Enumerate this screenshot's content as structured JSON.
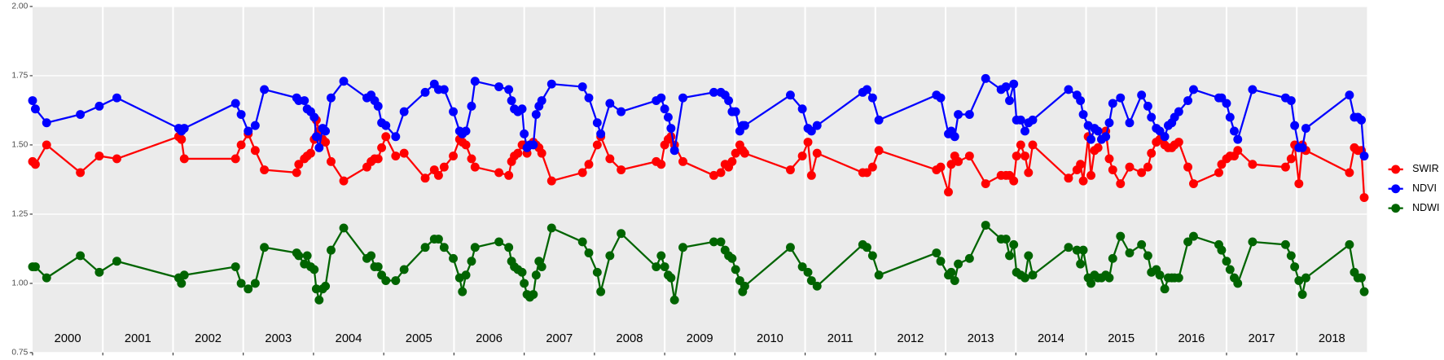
{
  "chart_data": {
    "type": "line",
    "x": [
      2000.0,
      2000.04,
      2000.2,
      2000.68,
      2000.95,
      2001.2,
      2002.08,
      2002.12,
      2002.16,
      2002.89,
      2002.97,
      2003.07,
      2003.17,
      2003.3,
      2003.76,
      2003.79,
      2003.87,
      2003.91,
      2003.96,
      2004.01,
      2004.04,
      2004.08,
      2004.13,
      2004.17,
      2004.25,
      2004.43,
      2004.76,
      2004.82,
      2004.87,
      2004.92,
      2004.97,
      2005.03,
      2005.17,
      2005.29,
      2005.59,
      2005.72,
      2005.78,
      2005.86,
      2005.99,
      2006.08,
      2006.12,
      2006.17,
      2006.25,
      2006.3,
      2006.64,
      2006.78,
      2006.82,
      2006.86,
      2006.91,
      2006.97,
      2007.0,
      2007.04,
      2007.08,
      2007.13,
      2007.17,
      2007.21,
      2007.25,
      2007.39,
      2007.83,
      2007.92,
      2008.04,
      2008.09,
      2008.22,
      2008.38,
      2008.88,
      2008.95,
      2009.0,
      2009.05,
      2009.09,
      2009.14,
      2009.26,
      2009.7,
      2009.8,
      2009.86,
      2009.91,
      2009.96,
      2010.01,
      2010.07,
      2010.11,
      2010.14,
      2010.79,
      2010.96,
      2011.04,
      2011.09,
      2011.17,
      2011.82,
      2011.88,
      2011.96,
      2012.05,
      2012.87,
      2012.93,
      2013.04,
      2013.08,
      2013.13,
      2013.18,
      2013.34,
      2013.57,
      2013.79,
      2013.86,
      2013.91,
      2013.97,
      2014.01,
      2014.07,
      2014.13,
      2014.18,
      2014.24,
      2014.75,
      2014.87,
      2014.92,
      2014.96,
      2015.03,
      2015.07,
      2015.12,
      2015.17,
      2015.22,
      2015.28,
      2015.33,
      2015.38,
      2015.49,
      2015.62,
      2015.79,
      2015.88,
      2015.93,
      2016.0,
      2016.05,
      2016.12,
      2016.17,
      2016.22,
      2016.26,
      2016.32,
      2016.45,
      2016.53,
      2016.89,
      2016.93,
      2017.0,
      2017.05,
      2017.11,
      2017.16,
      2017.37,
      2017.84,
      2017.92,
      2017.97,
      2018.03,
      2018.08,
      2018.13,
      2018.75,
      2018.82,
      2018.87,
      2018.92,
      2018.96
    ],
    "series": [
      {
        "name": "SWIR",
        "color": "#ff0000",
        "values": [
          1.44,
          1.43,
          1.5,
          1.4,
          1.46,
          1.45,
          1.53,
          1.52,
          1.45,
          1.45,
          1.5,
          1.54,
          1.48,
          1.41,
          1.4,
          1.43,
          1.45,
          1.46,
          1.47,
          1.52,
          1.59,
          1.55,
          1.52,
          1.51,
          1.44,
          1.37,
          1.42,
          1.44,
          1.45,
          1.45,
          1.49,
          1.53,
          1.46,
          1.47,
          1.38,
          1.41,
          1.39,
          1.42,
          1.46,
          1.52,
          1.51,
          1.5,
          1.45,
          1.42,
          1.4,
          1.39,
          1.44,
          1.46,
          1.47,
          1.5,
          1.5,
          1.47,
          1.5,
          1.51,
          1.5,
          1.49,
          1.47,
          1.37,
          1.4,
          1.43,
          1.5,
          1.53,
          1.45,
          1.41,
          1.44,
          1.43,
          1.5,
          1.52,
          1.53,
          1.5,
          1.44,
          1.39,
          1.4,
          1.43,
          1.42,
          1.44,
          1.47,
          1.5,
          1.48,
          1.47,
          1.41,
          1.46,
          1.51,
          1.39,
          1.47,
          1.4,
          1.4,
          1.42,
          1.48,
          1.41,
          1.42,
          1.33,
          1.43,
          1.46,
          1.44,
          1.46,
          1.36,
          1.39,
          1.39,
          1.39,
          1.37,
          1.46,
          1.5,
          1.46,
          1.4,
          1.5,
          1.38,
          1.41,
          1.43,
          1.37,
          1.53,
          1.39,
          1.48,
          1.49,
          1.52,
          1.55,
          1.45,
          1.41,
          1.36,
          1.42,
          1.4,
          1.42,
          1.47,
          1.51,
          1.52,
          1.5,
          1.49,
          1.49,
          1.5,
          1.51,
          1.42,
          1.36,
          1.4,
          1.43,
          1.45,
          1.46,
          1.46,
          1.48,
          1.43,
          1.42,
          1.45,
          1.5,
          1.36,
          1.5,
          1.48,
          1.4,
          1.49,
          1.48,
          1.48,
          1.31
        ]
      },
      {
        "name": "NDVI",
        "color": "#0000ff",
        "values": [
          1.66,
          1.63,
          1.58,
          1.61,
          1.64,
          1.67,
          1.56,
          1.55,
          1.56,
          1.65,
          1.61,
          1.55,
          1.57,
          1.7,
          1.67,
          1.66,
          1.66,
          1.63,
          1.62,
          1.6,
          1.53,
          1.49,
          1.56,
          1.55,
          1.67,
          1.73,
          1.67,
          1.68,
          1.66,
          1.64,
          1.58,
          1.57,
          1.53,
          1.62,
          1.69,
          1.72,
          1.7,
          1.7,
          1.62,
          1.55,
          1.54,
          1.55,
          1.64,
          1.73,
          1.71,
          1.7,
          1.66,
          1.63,
          1.62,
          1.63,
          1.54,
          1.49,
          1.5,
          1.5,
          1.61,
          1.64,
          1.66,
          1.72,
          1.71,
          1.67,
          1.58,
          1.54,
          1.65,
          1.62,
          1.66,
          1.67,
          1.63,
          1.6,
          1.56,
          1.48,
          1.67,
          1.69,
          1.69,
          1.68,
          1.66,
          1.62,
          1.62,
          1.55,
          1.57,
          1.57,
          1.68,
          1.63,
          1.56,
          1.55,
          1.57,
          1.69,
          1.7,
          1.67,
          1.59,
          1.68,
          1.67,
          1.54,
          1.55,
          1.53,
          1.61,
          1.61,
          1.74,
          1.7,
          1.71,
          1.66,
          1.72,
          1.59,
          1.59,
          1.55,
          1.58,
          1.59,
          1.7,
          1.68,
          1.66,
          1.61,
          1.57,
          1.52,
          1.56,
          1.55,
          1.52,
          1.53,
          1.58,
          1.65,
          1.67,
          1.58,
          1.68,
          1.64,
          1.6,
          1.56,
          1.55,
          1.53,
          1.57,
          1.58,
          1.6,
          1.62,
          1.66,
          1.7,
          1.67,
          1.67,
          1.65,
          1.6,
          1.55,
          1.52,
          1.7,
          1.67,
          1.66,
          1.57,
          1.49,
          1.49,
          1.56,
          1.68,
          1.6,
          1.6,
          1.59,
          1.46
        ]
      },
      {
        "name": "NDWI",
        "color": "#006400",
        "values": [
          1.06,
          1.06,
          1.02,
          1.1,
          1.04,
          1.08,
          1.02,
          1.0,
          1.03,
          1.06,
          1.0,
          0.98,
          1.0,
          1.13,
          1.11,
          1.1,
          1.07,
          1.1,
          1.06,
          1.05,
          0.98,
          0.94,
          0.98,
          0.99,
          1.12,
          1.2,
          1.09,
          1.1,
          1.06,
          1.06,
          1.03,
          1.01,
          1.01,
          1.05,
          1.13,
          1.16,
          1.16,
          1.13,
          1.09,
          1.02,
          0.97,
          1.03,
          1.08,
          1.13,
          1.15,
          1.13,
          1.08,
          1.06,
          1.05,
          1.04,
          1.0,
          0.96,
          0.95,
          0.96,
          1.03,
          1.08,
          1.06,
          1.2,
          1.15,
          1.11,
          1.04,
          0.97,
          1.1,
          1.18,
          1.06,
          1.1,
          1.06,
          1.03,
          1.02,
          0.94,
          1.13,
          1.15,
          1.15,
          1.12,
          1.1,
          1.09,
          1.05,
          1.01,
          0.97,
          0.99,
          1.13,
          1.06,
          1.04,
          1.01,
          0.99,
          1.14,
          1.13,
          1.1,
          1.03,
          1.11,
          1.08,
          1.03,
          1.04,
          1.01,
          1.07,
          1.09,
          1.21,
          1.16,
          1.16,
          1.1,
          1.14,
          1.04,
          1.03,
          1.02,
          1.1,
          1.03,
          1.13,
          1.12,
          1.07,
          1.12,
          1.02,
          1.0,
          1.03,
          1.02,
          1.02,
          1.03,
          1.02,
          1.09,
          1.17,
          1.11,
          1.14,
          1.1,
          1.04,
          1.05,
          1.03,
          0.98,
          1.02,
          1.02,
          1.02,
          1.02,
          1.15,
          1.17,
          1.14,
          1.12,
          1.08,
          1.05,
          1.02,
          1.0,
          1.15,
          1.14,
          1.1,
          1.06,
          1.01,
          0.96,
          1.02,
          1.14,
          1.04,
          1.02,
          1.02,
          0.97
        ]
      }
    ],
    "xlim": [
      2000,
      2019
    ],
    "xticks": [
      2000,
      2001,
      2002,
      2003,
      2004,
      2005,
      2006,
      2007,
      2008,
      2009,
      2010,
      2011,
      2012,
      2013,
      2014,
      2015,
      2016,
      2017,
      2018
    ],
    "ylim": [
      0.75,
      2.0
    ],
    "yticks": [
      {
        "value": 0.75,
        "label": "0.75"
      },
      {
        "value": 1.0,
        "label": "1.00"
      },
      {
        "value": 1.25,
        "label": "1.25"
      },
      {
        "value": 1.5,
        "label": "1.50"
      },
      {
        "value": 1.75,
        "label": "1.75"
      },
      {
        "value": 2.0,
        "label": "2.00"
      }
    ],
    "grid": true,
    "legend": "right"
  }
}
